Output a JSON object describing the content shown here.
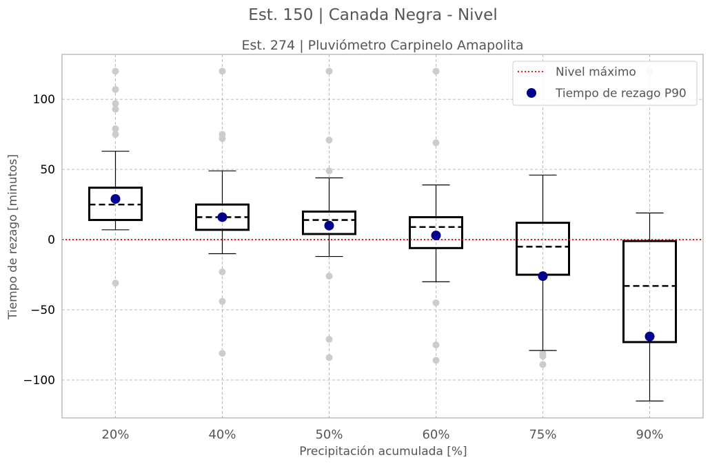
{
  "title": "Est. 150 | Canada Negra - Nivel",
  "subtitle": "Est. 274 | Pluviómetro Carpinelo Amapolita",
  "chart_data": {
    "type": "box",
    "xlabel": "Precipitación acumulada [%]",
    "ylabel": "Tiempo de rezago [minutos]",
    "ylim": [
      -127,
      132
    ],
    "yticks": [
      -100,
      -50,
      0,
      50,
      100
    ],
    "ytick_labels": [
      "−100",
      "−50",
      "0",
      "50",
      "100"
    ],
    "categories": [
      "20%",
      "40%",
      "50%",
      "60%",
      "75%",
      "90%"
    ],
    "grid": true,
    "legend_position": "top-right",
    "boxes": [
      {
        "category": "20%",
        "whisker_low": 7,
        "q1": 14,
        "mean": 25,
        "q3": 37,
        "whisker_high": 63,
        "outliers": [
          -31,
          75,
          79,
          93,
          97,
          107,
          120
        ]
      },
      {
        "category": "40%",
        "whisker_low": -10,
        "q1": 7,
        "mean": 16,
        "q3": 25,
        "whisker_high": 49,
        "outliers": [
          -81,
          -44,
          -23,
          72,
          75,
          120
        ]
      },
      {
        "category": "50%",
        "whisker_low": -12,
        "q1": 4,
        "mean": 14,
        "q3": 20,
        "whisker_high": 44,
        "outliers": [
          -84,
          -71,
          -26,
          49,
          71,
          120
        ]
      },
      {
        "category": "60%",
        "whisker_low": -30,
        "q1": -6,
        "mean": 9,
        "q3": 16,
        "whisker_high": 39,
        "outliers": [
          -86,
          -75,
          -45,
          69,
          120
        ]
      },
      {
        "category": "75%",
        "whisker_low": -79,
        "q1": -25,
        "mean": -5,
        "q3": 12,
        "whisker_high": 46,
        "outliers": [
          -89,
          -83,
          -81
        ]
      },
      {
        "category": "90%",
        "whisker_low": -115,
        "q1": -73,
        "mean": -33,
        "q3": -1,
        "whisker_high": 19,
        "outliers": [
          120
        ]
      }
    ],
    "series": [
      {
        "name": "Nivel máximo",
        "type": "hline",
        "y": 0,
        "color": "#cc0000"
      },
      {
        "name": "Tiempo de rezago P90",
        "type": "scatter",
        "values": [
          29,
          16,
          10,
          3,
          -26,
          -69
        ],
        "color": "#00008b"
      }
    ],
    "outlier_color": "#cccccc",
    "box_color": "#000000"
  }
}
